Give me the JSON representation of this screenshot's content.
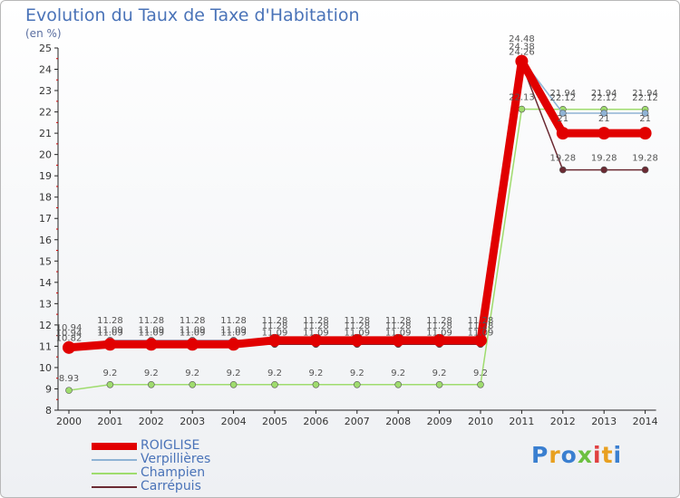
{
  "title": "Evolution du Taux de Taxe d'Habitation",
  "unit_label": "(en %)",
  "logo_text": "Proxiti",
  "chart_data": {
    "type": "line",
    "title": "Evolution du Taux de Taxe d'Habitation",
    "ylabel": "(en %)",
    "categories": [
      "2000",
      "2001",
      "2002",
      "2003",
      "2004",
      "2005",
      "2006",
      "2007",
      "2008",
      "2009",
      "2010",
      "2011",
      "2012",
      "2013",
      "2014"
    ],
    "y_ticks": [
      8,
      9,
      10,
      11,
      12,
      13,
      14,
      15,
      16,
      17,
      18,
      19,
      20,
      21,
      22,
      23,
      24,
      25
    ],
    "ylim": [
      8,
      25
    ],
    "series": [
      {
        "name": "ROIGLISE",
        "color": "#e10000",
        "values": [
          10.94,
          11.09,
          11.09,
          11.09,
          11.09,
          11.28,
          11.28,
          11.28,
          11.28,
          11.28,
          11.28,
          24.38,
          21,
          21,
          21
        ],
        "labels": [
          "10.94",
          "11.09",
          "11.09",
          "11.09",
          "11.09",
          "11.28",
          "11.28",
          "11.28",
          "11.28",
          "11.28",
          "11.28",
          "24.38",
          "21",
          "21",
          "21"
        ]
      },
      {
        "name": "Verpillières",
        "color": "#8fb3d4",
        "values": [
          10.94,
          11.28,
          11.28,
          11.28,
          11.28,
          11.28,
          11.28,
          11.28,
          11.28,
          11.28,
          11.28,
          24.48,
          21.94,
          21.94,
          21.94
        ],
        "labels": [
          "10.94",
          "11.28",
          "11.28",
          "11.28",
          "11.28",
          "11.28",
          "11.28",
          "11.28",
          "11.28",
          "11.28",
          "11.28",
          "24.48",
          "21.94",
          "21.94",
          "21.94"
        ]
      },
      {
        "name": "Champien",
        "color": "#9fdc6e",
        "values": [
          8.93,
          9.2,
          9.2,
          9.2,
          9.2,
          9.2,
          9.2,
          9.2,
          9.2,
          9.2,
          9.2,
          22.13,
          22.12,
          22.12,
          22.12
        ],
        "labels": [
          "8.93",
          "9.2",
          "9.2",
          "9.2",
          "9.2",
          "9.2",
          "9.2",
          "9.2",
          "9.2",
          "9.2",
          "9.2",
          "22.13",
          "22.12",
          "22.12",
          "22.12"
        ]
      },
      {
        "name": "Carrépuis",
        "color": "#6b2a33",
        "values": [
          10.82,
          11.09,
          11.09,
          11.09,
          11.09,
          11.09,
          11.09,
          11.09,
          11.09,
          11.09,
          11.09,
          24.26,
          19.28,
          19.28,
          19.28
        ],
        "labels": [
          "10.82",
          "11.09",
          "11.09",
          "11.09",
          "11.09",
          "11.09",
          "11.09",
          "11.09",
          "11.09",
          "11.09",
          "11.09",
          "24.26",
          "19.28",
          "19.28",
          "19.28"
        ]
      }
    ],
    "legend_position": "bottom-left",
    "grid": false
  }
}
